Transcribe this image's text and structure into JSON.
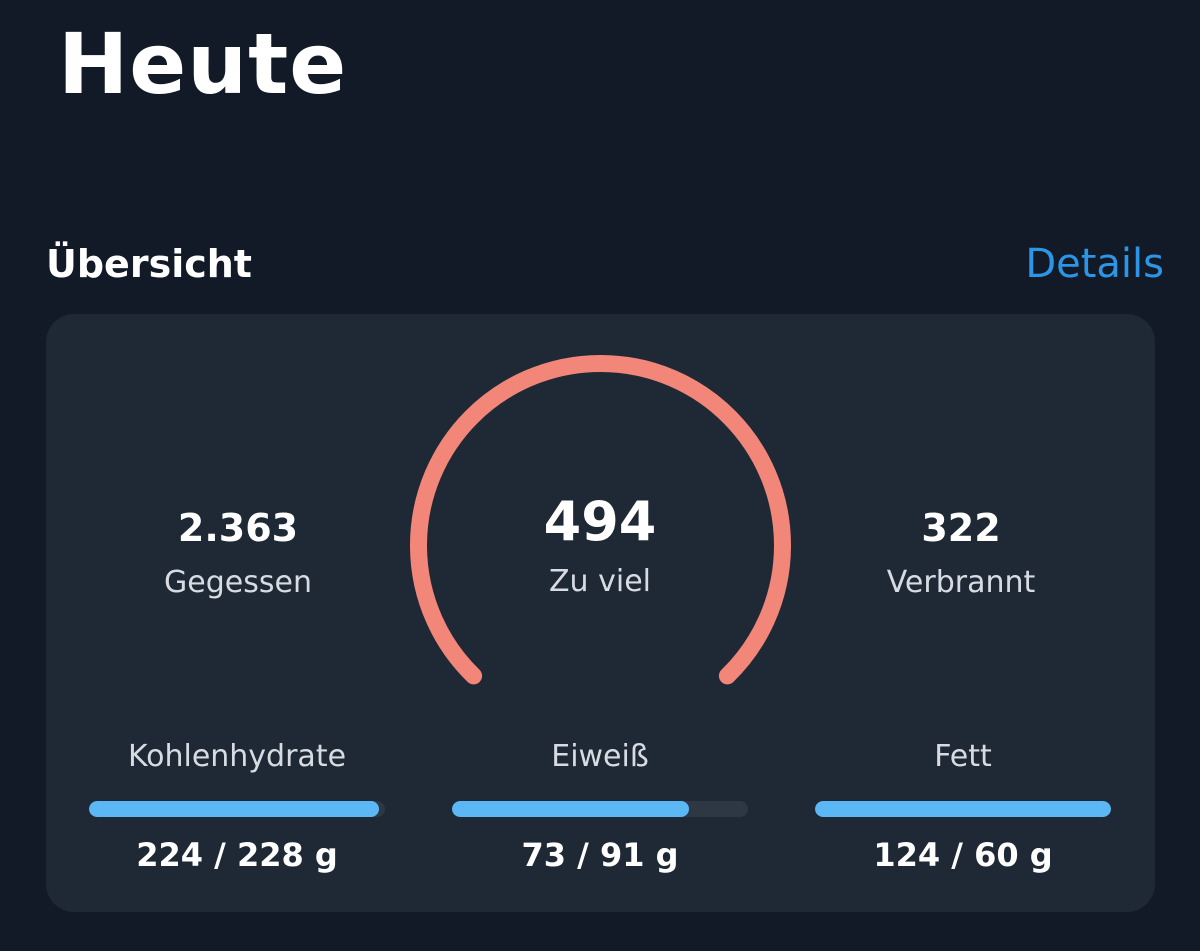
{
  "page": {
    "title": "Heute"
  },
  "overview": {
    "title": "Übersicht",
    "details_label": "Details"
  },
  "summary": {
    "eaten": {
      "value": "2.363",
      "label": "Gegessen"
    },
    "remaining": {
      "value": "494",
      "label": "Zu viel"
    },
    "burned": {
      "value": "322",
      "label": "Verbrannt"
    },
    "gauge_color": "#F28779"
  },
  "macros": [
    {
      "label": "Kohlenhydrate",
      "value": "224 / 228 g",
      "progress": 0.98
    },
    {
      "label": "Eiweiß",
      "value": "73 / 91 g",
      "progress": 0.8
    },
    {
      "label": "Fett",
      "value": "124 / 60 g",
      "progress": 1.0
    }
  ],
  "colors": {
    "background": "#121A27",
    "card": "#1F2935",
    "accent": "#2C95E6",
    "bar_fill": "#5BB8F5",
    "bar_track": "#2E3845"
  }
}
